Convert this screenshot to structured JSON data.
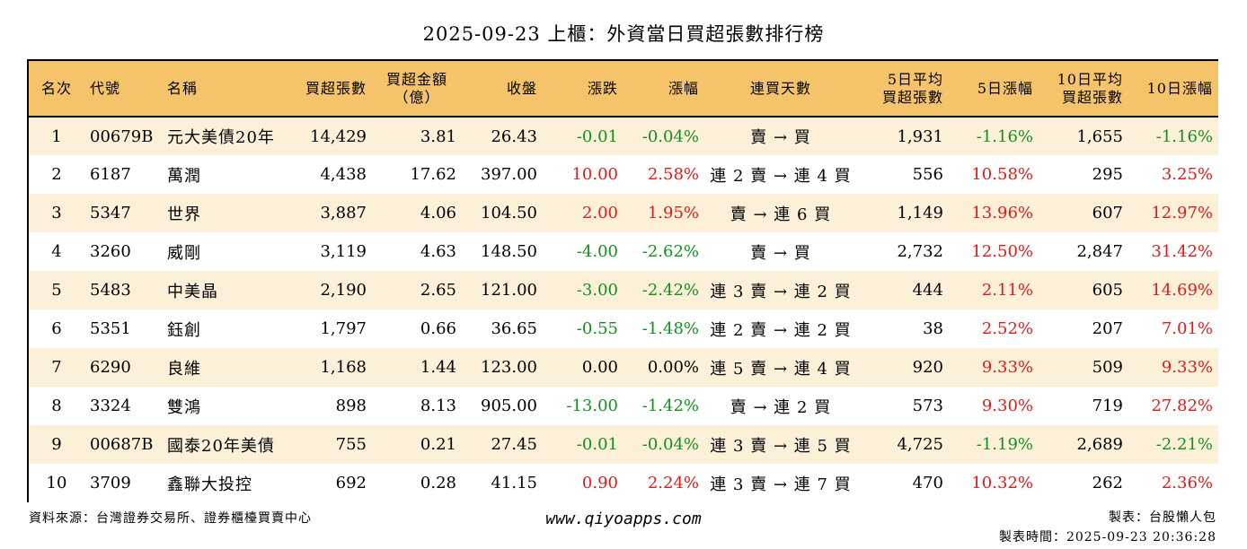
{
  "title": "2025-09-23 上櫃：外資當日買超張數排行榜",
  "headers": {
    "rank": "名次",
    "code": "代號",
    "name": "名稱",
    "buy_shares": "買超張數",
    "buy_amount_1": "買超金額",
    "buy_amount_2": "（億）",
    "close": "收盤",
    "change": "漲跌",
    "pct": "漲幅",
    "streak": "連買天數",
    "avg5_1": "5日平均",
    "avg5_2": "買超張數",
    "pct5": "5日漲幅",
    "avg10_1": "10日平均",
    "avg10_2": "買超張數",
    "pct10": "10日漲幅"
  },
  "rows": [
    {
      "rank": "1",
      "code": "00679B",
      "name": "元大美債20年",
      "buy_shares": "14,429",
      "buy_amount": "3.81",
      "close": "26.43",
      "change": "-0.01",
      "change_dir": "neg",
      "pct": "-0.04%",
      "pct_dir": "neg",
      "streak": "賣 → 買",
      "avg5": "1,931",
      "pct5": "-1.16%",
      "pct5_dir": "neg",
      "avg10": "1,655",
      "pct10": "-1.16%",
      "pct10_dir": "neg"
    },
    {
      "rank": "2",
      "code": "6187",
      "name": "萬潤",
      "buy_shares": "4,438",
      "buy_amount": "17.62",
      "close": "397.00",
      "change": "10.00",
      "change_dir": "pos",
      "pct": "2.58%",
      "pct_dir": "pos",
      "streak": "連 2 賣 → 連 4 買",
      "avg5": "556",
      "pct5": "10.58%",
      "pct5_dir": "pos",
      "avg10": "295",
      "pct10": "3.25%",
      "pct10_dir": "pos"
    },
    {
      "rank": "3",
      "code": "5347",
      "name": "世界",
      "buy_shares": "3,887",
      "buy_amount": "4.06",
      "close": "104.50",
      "change": "2.00",
      "change_dir": "pos",
      "pct": "1.95%",
      "pct_dir": "pos",
      "streak": "賣 → 連 6 買",
      "avg5": "1,149",
      "pct5": "13.96%",
      "pct5_dir": "pos",
      "avg10": "607",
      "pct10": "12.97%",
      "pct10_dir": "pos"
    },
    {
      "rank": "4",
      "code": "3260",
      "name": "威剛",
      "buy_shares": "3,119",
      "buy_amount": "4.63",
      "close": "148.50",
      "change": "-4.00",
      "change_dir": "neg",
      "pct": "-2.62%",
      "pct_dir": "neg",
      "streak": "賣 → 買",
      "avg5": "2,732",
      "pct5": "12.50%",
      "pct5_dir": "pos",
      "avg10": "2,847",
      "pct10": "31.42%",
      "pct10_dir": "pos"
    },
    {
      "rank": "5",
      "code": "5483",
      "name": "中美晶",
      "buy_shares": "2,190",
      "buy_amount": "2.65",
      "close": "121.00",
      "change": "-3.00",
      "change_dir": "neg",
      "pct": "-2.42%",
      "pct_dir": "neg",
      "streak": "連 3 賣 → 連 2 買",
      "avg5": "444",
      "pct5": "2.11%",
      "pct5_dir": "pos",
      "avg10": "605",
      "pct10": "14.69%",
      "pct10_dir": "pos"
    },
    {
      "rank": "6",
      "code": "5351",
      "name": "鈺創",
      "buy_shares": "1,797",
      "buy_amount": "0.66",
      "close": "36.65",
      "change": "-0.55",
      "change_dir": "neg",
      "pct": "-1.48%",
      "pct_dir": "neg",
      "streak": "連 2 賣 → 連 2 買",
      "avg5": "38",
      "pct5": "2.52%",
      "pct5_dir": "pos",
      "avg10": "207",
      "pct10": "7.01%",
      "pct10_dir": "pos"
    },
    {
      "rank": "7",
      "code": "6290",
      "name": "良維",
      "buy_shares": "1,168",
      "buy_amount": "1.44",
      "close": "123.00",
      "change": "0.00",
      "change_dir": "zero",
      "pct": "0.00%",
      "pct_dir": "zero",
      "streak": "連 5 賣 → 連 4 買",
      "avg5": "920",
      "pct5": "9.33%",
      "pct5_dir": "pos",
      "avg10": "509",
      "pct10": "9.33%",
      "pct10_dir": "pos"
    },
    {
      "rank": "8",
      "code": "3324",
      "name": "雙鴻",
      "buy_shares": "898",
      "buy_amount": "8.13",
      "close": "905.00",
      "change": "-13.00",
      "change_dir": "neg",
      "pct": "-1.42%",
      "pct_dir": "neg",
      "streak": "賣 → 連 2 買",
      "avg5": "573",
      "pct5": "9.30%",
      "pct5_dir": "pos",
      "avg10": "719",
      "pct10": "27.82%",
      "pct10_dir": "pos"
    },
    {
      "rank": "9",
      "code": "00687B",
      "name": "國泰20年美債",
      "buy_shares": "755",
      "buy_amount": "0.21",
      "close": "27.45",
      "change": "-0.01",
      "change_dir": "neg",
      "pct": "-0.04%",
      "pct_dir": "neg",
      "streak": "連 3 賣 → 連 5 買",
      "avg5": "4,725",
      "pct5": "-1.19%",
      "pct5_dir": "neg",
      "avg10": "2,689",
      "pct10": "-2.21%",
      "pct10_dir": "neg"
    },
    {
      "rank": "10",
      "code": "3709",
      "name": "鑫聯大投控",
      "buy_shares": "692",
      "buy_amount": "0.28",
      "close": "41.15",
      "change": "0.90",
      "change_dir": "pos",
      "pct": "2.24%",
      "pct_dir": "pos",
      "streak": "連 3 賣 → 連 7 買",
      "avg5": "470",
      "pct5": "10.32%",
      "pct5_dir": "pos",
      "avg10": "262",
      "pct10": "2.36%",
      "pct10_dir": "pos"
    }
  ],
  "footer": {
    "source": "資料來源：台灣證券交易所、證券櫃檯買賣中心",
    "website": "www.qiyoapps.com",
    "author": "製表：台股懶人包",
    "time": "製表時間：2025-09-23 20:36:28"
  },
  "colors": {
    "header_bg": "#f5c36a",
    "row_alt_bg": "#fdf0d8",
    "positive": "#e01b1b",
    "negative": "#14901f"
  }
}
